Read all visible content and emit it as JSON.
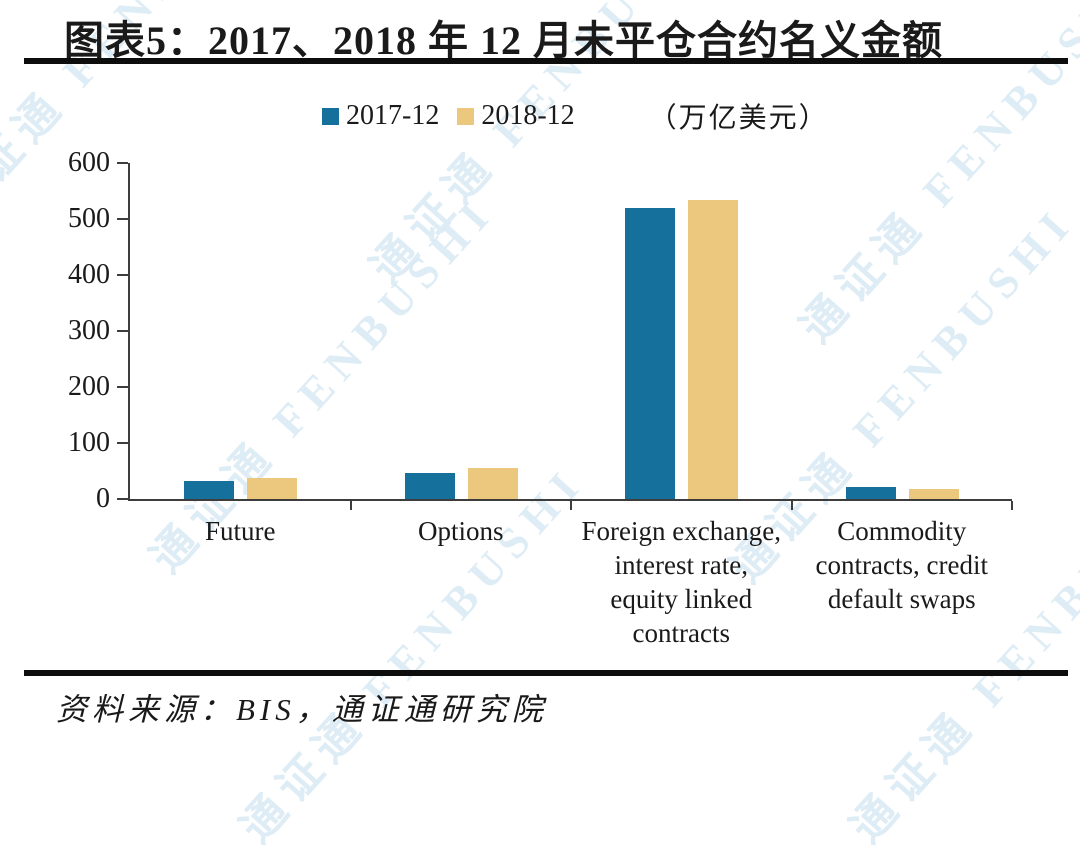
{
  "header": {
    "title": "图表5：2017、2018 年 12 月未平仓合约名义金额"
  },
  "legend": {
    "items": [
      {
        "label": "2017-12",
        "color": "#16709c"
      },
      {
        "label": "2018-12",
        "color": "#ecc87e"
      }
    ],
    "unit": "（万亿美元）"
  },
  "chart_data": {
    "type": "bar",
    "title": "图表5：2017、2018 年 12 月未平仓合约名义金额",
    "unit_label": "（万亿美元）",
    "categories": [
      "Future",
      "Options",
      "Foreign exchange, interest rate, equity linked contracts",
      "Commodity contracts, credit default swaps"
    ],
    "category_lines": [
      [
        "Future"
      ],
      [
        "Options"
      ],
      [
        "Foreign exchange,",
        "interest rate,",
        "equity linked",
        "contracts"
      ],
      [
        "Commodity",
        "contracts, credit",
        "default swaps"
      ]
    ],
    "series": [
      {
        "name": "2017-12",
        "color": "#16709c",
        "values": [
          33,
          47,
          520,
          21
        ]
      },
      {
        "name": "2018-12",
        "color": "#ecc87e",
        "values": [
          38,
          55,
          534,
          18
        ]
      }
    ],
    "ylim": [
      0,
      600
    ],
    "yticks": [
      0,
      100,
      200,
      300,
      400,
      500,
      600
    ],
    "grid": false,
    "legend_position": "top"
  },
  "footer": {
    "source": "资料来源：BIS，通证通研究院"
  },
  "watermark": {
    "text": "通证通 FENBUSHI",
    "color": "#d8e9f4"
  }
}
